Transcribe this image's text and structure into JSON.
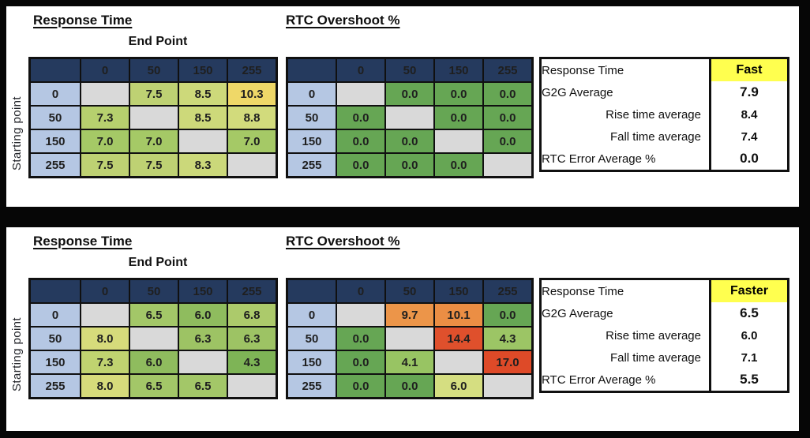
{
  "labels": {
    "response_time_title": "Response Time",
    "rtc_overshoot_title": "RTC Overshoot %",
    "end_point": "End Point",
    "starting_point": "Starting point"
  },
  "palette": {
    "header_bg": "#253A5E",
    "header_text": "#F2F2F2",
    "row_header_bg": "#B5C7E3",
    "blank_bg": "#D9D9D9",
    "highlight_yellow": "#FFFF4F",
    "panel_bg": "#FFFFFF",
    "frame_bg": "#060606"
  },
  "axis": [
    "0",
    "50",
    "150",
    "255"
  ],
  "panels": [
    {
      "response_time": [
        [
          null,
          {
            "v": "7.5",
            "bg": "#BED173"
          },
          {
            "v": "8.5",
            "bg": "#CDD97A"
          },
          {
            "v": "10.3",
            "bg": "#EFD868"
          }
        ],
        [
          {
            "v": "7.3",
            "bg": "#B6D06E"
          },
          null,
          {
            "v": "8.5",
            "bg": "#CDD97A"
          },
          {
            "v": "8.8",
            "bg": "#D2DB7C"
          }
        ],
        [
          {
            "v": "7.0",
            "bg": "#A5C966"
          },
          {
            "v": "7.0",
            "bg": "#A5C966"
          },
          null,
          {
            "v": "7.0",
            "bg": "#A5C966"
          }
        ],
        [
          {
            "v": "7.5",
            "bg": "#BED173"
          },
          {
            "v": "7.5",
            "bg": "#BED173"
          },
          {
            "v": "8.3",
            "bg": "#CBD87A"
          },
          null
        ]
      ],
      "rtc_overshoot": [
        [
          null,
          {
            "v": "0.0",
            "bg": "#66A654"
          },
          {
            "v": "0.0",
            "bg": "#66A654"
          },
          {
            "v": "0.0",
            "bg": "#66A654"
          }
        ],
        [
          {
            "v": "0.0",
            "bg": "#66A654"
          },
          null,
          {
            "v": "0.0",
            "bg": "#66A654"
          },
          {
            "v": "0.0",
            "bg": "#66A654"
          }
        ],
        [
          {
            "v": "0.0",
            "bg": "#66A654"
          },
          {
            "v": "0.0",
            "bg": "#66A654"
          },
          null,
          {
            "v": "0.0",
            "bg": "#66A654"
          }
        ],
        [
          {
            "v": "0.0",
            "bg": "#66A654"
          },
          {
            "v": "0.0",
            "bg": "#66A654"
          },
          {
            "v": "0.0",
            "bg": "#66A654"
          },
          null
        ]
      ],
      "summary": [
        {
          "label": "Response Time",
          "value": "Fast",
          "style": "highlight"
        },
        {
          "label": "G2G Average",
          "value": "7.9",
          "style": "bold"
        },
        {
          "label": "Rise time average",
          "value": "8.4",
          "style": "indent"
        },
        {
          "label": "Fall time average",
          "value": "7.4",
          "style": "indent"
        },
        {
          "label": "RTC Error Average %",
          "value": "0.0",
          "style": "bold"
        }
      ]
    },
    {
      "response_time": [
        [
          null,
          {
            "v": "6.5",
            "bg": "#A3C768"
          },
          {
            "v": "6.0",
            "bg": "#8FBC5E"
          },
          {
            "v": "6.8",
            "bg": "#ACCA6B"
          }
        ],
        [
          {
            "v": "8.0",
            "bg": "#D6DB7B"
          },
          null,
          {
            "v": "6.3",
            "bg": "#9DC364"
          },
          {
            "v": "6.3",
            "bg": "#9DC364"
          }
        ],
        [
          {
            "v": "7.3",
            "bg": "#C0D370"
          },
          {
            "v": "6.0",
            "bg": "#8FBC5E"
          },
          null,
          {
            "v": "4.3",
            "bg": "#7EB456"
          }
        ],
        [
          {
            "v": "8.0",
            "bg": "#D6DB7B"
          },
          {
            "v": "6.5",
            "bg": "#A3C768"
          },
          {
            "v": "6.5",
            "bg": "#A3C768"
          },
          null
        ]
      ],
      "rtc_overshoot": [
        [
          null,
          {
            "v": "9.7",
            "bg": "#EC9549"
          },
          {
            "v": "10.1",
            "bg": "#EB8E44"
          },
          {
            "v": "0.0",
            "bg": "#66A654"
          }
        ],
        [
          {
            "v": "0.0",
            "bg": "#66A654"
          },
          null,
          {
            "v": "14.4",
            "bg": "#DF502C"
          },
          {
            "v": "4.3",
            "bg": "#9CC565"
          }
        ],
        [
          {
            "v": "0.0",
            "bg": "#66A654"
          },
          {
            "v": "4.1",
            "bg": "#98C463"
          },
          null,
          {
            "v": "17.0",
            "bg": "#DE4A28"
          }
        ],
        [
          {
            "v": "0.0",
            "bg": "#66A654"
          },
          {
            "v": "0.0",
            "bg": "#66A654"
          },
          {
            "v": "6.0",
            "bg": "#D5DE81"
          },
          null
        ]
      ],
      "summary": [
        {
          "label": "Response Time",
          "value": "Faster",
          "style": "highlight"
        },
        {
          "label": "G2G Average",
          "value": "6.5",
          "style": "bold"
        },
        {
          "label": "Rise time average",
          "value": "6.0",
          "style": "indent"
        },
        {
          "label": "Fall time average",
          "value": "7.1",
          "style": "indent"
        },
        {
          "label": "RTC Error Average %",
          "value": "5.5",
          "style": "bold"
        }
      ]
    }
  ]
}
